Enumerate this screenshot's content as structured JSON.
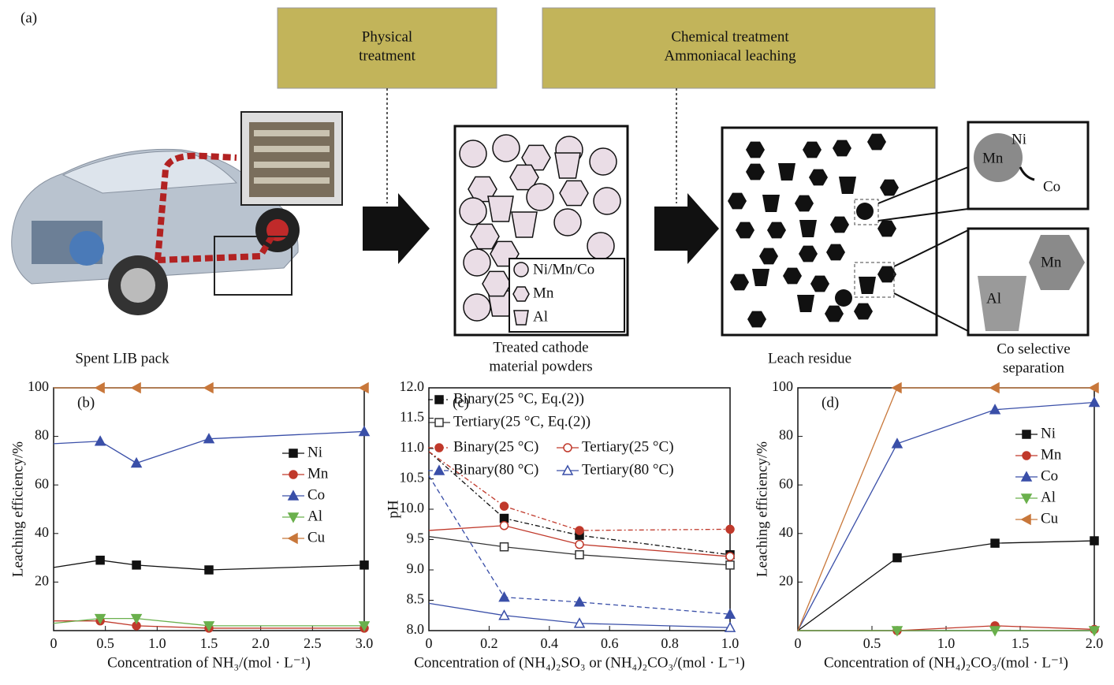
{
  "diagram": {
    "label": "(a)",
    "steps": [
      {
        "lines": [
          "Physical",
          "treatment"
        ]
      },
      {
        "lines": [
          "Chemical treatment",
          "Ammoniacal leaching"
        ]
      }
    ],
    "captions": [
      [
        "Spent LIB pack"
      ],
      [
        "Treated cathode",
        "material powders"
      ],
      [
        "Leach residue"
      ],
      [
        "Co selective",
        "separation"
      ]
    ],
    "powder_legend": [
      "Ni/Mn/Co",
      "Mn",
      "Al"
    ],
    "inset_top": [
      "Ni",
      "Mn",
      "Co"
    ],
    "inset_bottom": [
      "Mn",
      "Al"
    ]
  },
  "chart_data": [
    {
      "type": "line",
      "label": "(b)",
      "xlabel": "Concentration of NH₃/(mol · L⁻¹)",
      "ylabel": "Leaching efficiency/%",
      "x": [
        0,
        0.45,
        0.8,
        1.5,
        3.0
      ],
      "xlim": [
        0,
        3.0
      ],
      "ylim": [
        0,
        100
      ],
      "xticks": [
        0,
        0.5,
        {
          "value": 1,
          "label": "1.0"
        },
        1.5,
        {
          "value": 2,
          "label": "2.0"
        },
        2.5,
        {
          "value": 3,
          "label": "3.0"
        }
      ],
      "yticks": [
        20,
        40,
        60,
        80,
        100
      ],
      "legend": "right",
      "series": [
        {
          "name": "Ni",
          "color": "#111111",
          "marker": "square",
          "filled": true,
          "linestyle": "solid",
          "values": [
            26,
            29,
            27,
            25,
            27
          ]
        },
        {
          "name": "Mn",
          "color": "#c0392b",
          "marker": "circle",
          "filled": true,
          "linestyle": "solid",
          "values": [
            4,
            4,
            2,
            1,
            1
          ]
        },
        {
          "name": "Co",
          "color": "#3a4fa8",
          "marker": "triangle-up",
          "filled": true,
          "linestyle": "solid",
          "values": [
            77,
            78,
            69,
            79,
            82
          ]
        },
        {
          "name": "Al",
          "color": "#6ab04c",
          "marker": "triangle-down",
          "filled": true,
          "linestyle": "solid",
          "values": [
            3,
            5,
            5,
            2,
            2
          ]
        },
        {
          "name": "Cu",
          "color": "#c8773a",
          "marker": "triangle-left",
          "filled": true,
          "linestyle": "solid",
          "values": [
            100,
            100,
            100,
            100,
            100
          ]
        }
      ]
    },
    {
      "type": "line",
      "label": "(c)",
      "xlabel": "Concentration of (NH₄)₂SO₃ or (NH₄)₂CO₃/(mol · L⁻¹)",
      "ylabel": "pH",
      "x": [
        0,
        0.25,
        0.5,
        1.0
      ],
      "xlim": [
        0,
        1
      ],
      "ylim": [
        8,
        12
      ],
      "xticks": [
        0,
        0.2,
        0.4,
        0.6,
        0.8,
        {
          "value": 1,
          "label": "1.0"
        }
      ],
      "yticks": [
        {
          "value": 8,
          "label": "8.0"
        },
        8.5,
        {
          "value": 9,
          "label": "9.0"
        },
        9.5,
        {
          "value": 10,
          "label": "10.0"
        },
        10.5,
        {
          "value": 11,
          "label": "11.0"
        },
        11.5,
        {
          "value": 12,
          "label": "12.0"
        }
      ],
      "legend": "top",
      "series": [
        {
          "name": "Binary(25 °C, Eq.(2))",
          "color": "#111111",
          "marker": "square",
          "filled": true,
          "linestyle": "dashdot",
          "values": [
            10.95,
            9.85,
            9.57,
            9.25
          ]
        },
        {
          "name": "Tertiary(25 °C, Eq.(2))",
          "color": "#333333",
          "marker": "square",
          "filled": false,
          "linestyle": "solid",
          "values": [
            9.55,
            9.38,
            9.25,
            9.08
          ]
        },
        {
          "name": "Binary(25 °C)",
          "color": "#c0392b",
          "marker": "circle",
          "filled": true,
          "linestyle": "dashdot",
          "values": [
            10.95,
            10.05,
            9.65,
            9.67
          ]
        },
        {
          "name": "Tertiary(25 °C)",
          "color": "#c0392b",
          "marker": "circle",
          "filled": false,
          "linestyle": "solid",
          "values": [
            9.65,
            9.73,
            9.42,
            9.22
          ]
        },
        {
          "name": "Binary(80 °C)",
          "color": "#3a4fa8",
          "marker": "triangle-up",
          "filled": true,
          "linestyle": "dash",
          "values": [
            10.55,
            8.55,
            8.47,
            8.27
          ]
        },
        {
          "name": "Tertiary(80 °C)",
          "color": "#3a4fa8",
          "marker": "triangle-up",
          "filled": false,
          "linestyle": "solid",
          "values": [
            8.45,
            8.25,
            8.12,
            8.05
          ]
        }
      ]
    },
    {
      "type": "line",
      "label": "(d)",
      "xlabel": "Concentration of (NH₄)₂CO₃/(mol · L⁻¹)",
      "ylabel": "Leaching efficiency/%",
      "x": [
        0,
        0.67,
        1.33,
        2.0
      ],
      "xlim": [
        0,
        2
      ],
      "ylim": [
        0,
        100
      ],
      "xticks": [
        0,
        0.5,
        {
          "value": 1,
          "label": "1.0"
        },
        1.5,
        {
          "value": 2,
          "label": "2.0"
        }
      ],
      "yticks": [
        20,
        40,
        60,
        80,
        100
      ],
      "legend": "right",
      "series": [
        {
          "name": "Ni",
          "color": "#111111",
          "marker": "square",
          "filled": true,
          "linestyle": "solid",
          "values": [
            0,
            30,
            36,
            37
          ]
        },
        {
          "name": "Mn",
          "color": "#c0392b",
          "marker": "circle",
          "filled": true,
          "linestyle": "solid",
          "values": [
            0,
            0,
            2,
            0.5
          ]
        },
        {
          "name": "Co",
          "color": "#3a4fa8",
          "marker": "triangle-up",
          "filled": true,
          "linestyle": "solid",
          "values": [
            0,
            77,
            91,
            94
          ]
        },
        {
          "name": "Al",
          "color": "#6ab04c",
          "marker": "triangle-down",
          "filled": true,
          "linestyle": "solid",
          "values": [
            0,
            0,
            0,
            0
          ]
        },
        {
          "name": "Cu",
          "color": "#c8773a",
          "marker": "triangle-left",
          "filled": true,
          "linestyle": "solid",
          "values": [
            0,
            100,
            100,
            100
          ]
        }
      ]
    }
  ]
}
